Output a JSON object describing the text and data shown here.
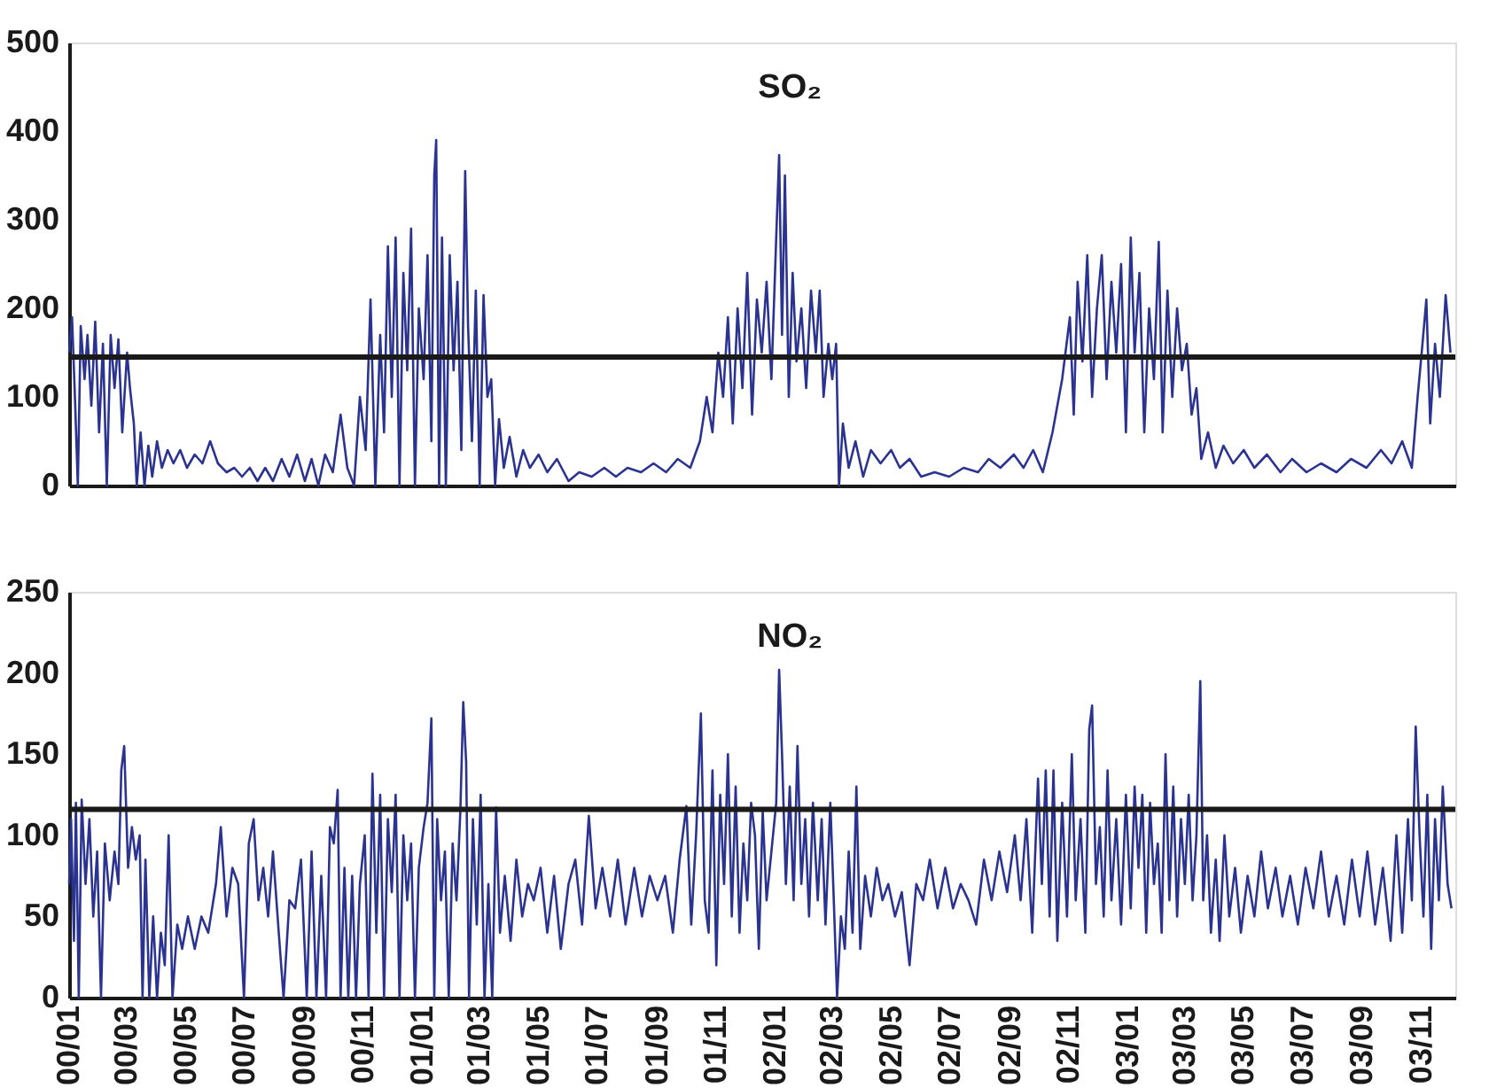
{
  "chart_data": [
    {
      "type": "line",
      "title": "SO₂",
      "xlim": [
        "2000-01-01",
        "2003-12-06"
      ],
      "ylim": [
        0,
        500
      ],
      "yticks": [
        0,
        100,
        200,
        300,
        400,
        500
      ],
      "tick_labels": "y",
      "grid": false,
      "ref_lines": [
        {
          "axis": "y",
          "value": 145,
          "color": "#1a1a1a"
        }
      ],
      "series": [
        {
          "color": "#2b3390",
          "x": [
            "2000-01-01",
            "2000-01-04",
            "2000-01-07",
            "2000-01-10",
            "2000-01-13",
            "2000-01-17",
            "2000-01-20",
            "2000-01-24",
            "2000-01-28",
            "2000-02-01",
            "2000-02-05",
            "2000-02-09",
            "2000-02-13",
            "2000-02-17",
            "2000-02-21",
            "2000-02-25",
            "2000-03-01",
            "2000-03-04",
            "2000-03-08",
            "2000-03-11",
            "2000-03-15",
            "2000-03-19",
            "2000-03-23",
            "2000-03-27",
            "2000-04-01",
            "2000-04-06",
            "2000-04-12",
            "2000-04-18",
            "2000-04-25",
            "2000-05-02",
            "2000-05-10",
            "2000-05-18",
            "2000-05-26",
            "2000-06-03",
            "2000-06-12",
            "2000-06-20",
            "2000-06-28",
            "2000-07-06",
            "2000-07-14",
            "2000-07-22",
            "2000-07-30",
            "2000-08-08",
            "2000-08-16",
            "2000-08-24",
            "2000-09-01",
            "2000-09-08",
            "2000-09-15",
            "2000-09-22",
            "2000-09-30",
            "2000-10-08",
            "2000-10-15",
            "2000-10-22",
            "2000-10-28",
            "2000-11-03",
            "2000-11-08",
            "2000-11-13",
            "2000-11-18",
            "2000-11-22",
            "2000-11-26",
            "2000-11-30",
            "2000-12-04",
            "2000-12-08",
            "2000-12-12",
            "2000-12-16",
            "2000-12-20",
            "2000-12-24",
            "2000-12-28",
            "2001-01-02",
            "2001-01-06",
            "2001-01-10",
            "2001-01-13",
            "2001-01-15",
            "2001-01-18",
            "2001-01-21",
            "2001-01-25",
            "2001-01-29",
            "2001-02-02",
            "2001-02-06",
            "2001-02-10",
            "2001-02-14",
            "2001-02-17",
            "2001-02-21",
            "2001-02-25",
            "2001-03-01",
            "2001-03-05",
            "2001-03-09",
            "2001-03-13",
            "2001-03-17",
            "2001-03-21",
            "2001-03-26",
            "2001-04-01",
            "2001-04-08",
            "2001-04-15",
            "2001-04-22",
            "2001-05-01",
            "2001-05-10",
            "2001-05-20",
            "2001-06-01",
            "2001-06-12",
            "2001-06-25",
            "2001-07-08",
            "2001-07-20",
            "2001-08-01",
            "2001-08-15",
            "2001-08-28",
            "2001-09-10",
            "2001-09-22",
            "2001-10-05",
            "2001-10-15",
            "2001-10-22",
            "2001-10-28",
            "2001-11-03",
            "2001-11-08",
            "2001-11-13",
            "2001-11-18",
            "2001-11-23",
            "2001-11-28",
            "2001-12-03",
            "2001-12-08",
            "2001-12-13",
            "2001-12-18",
            "2001-12-23",
            "2001-12-28",
            "2002-01-02",
            "2002-01-05",
            "2002-01-08",
            "2002-01-11",
            "2002-01-15",
            "2002-01-19",
            "2002-01-23",
            "2002-01-28",
            "2002-02-02",
            "2002-02-07",
            "2002-02-12",
            "2002-02-16",
            "2002-02-20",
            "2002-02-25",
            "2002-03-01",
            "2002-03-05",
            "2002-03-08",
            "2002-03-12",
            "2002-03-18",
            "2002-03-25",
            "2002-04-02",
            "2002-04-10",
            "2002-04-20",
            "2002-05-01",
            "2002-05-10",
            "2002-05-20",
            "2002-06-01",
            "2002-06-15",
            "2002-06-30",
            "2002-07-15",
            "2002-07-30",
            "2002-08-10",
            "2002-08-22",
            "2002-09-05",
            "2002-09-15",
            "2002-09-25",
            "2002-10-05",
            "2002-10-15",
            "2002-10-25",
            "2002-11-02",
            "2002-11-06",
            "2002-11-10",
            "2002-11-15",
            "2002-11-20",
            "2002-11-25",
            "2002-11-30",
            "2002-12-05",
            "2002-12-10",
            "2002-12-15",
            "2002-12-20",
            "2002-12-25",
            "2002-12-30",
            "2003-01-04",
            "2003-01-08",
            "2003-01-13",
            "2003-01-18",
            "2003-01-23",
            "2003-01-28",
            "2003-02-02",
            "2003-02-06",
            "2003-02-11",
            "2003-02-16",
            "2003-02-21",
            "2003-02-26",
            "2003-03-03",
            "2003-03-08",
            "2003-03-13",
            "2003-03-18",
            "2003-03-25",
            "2003-04-02",
            "2003-04-10",
            "2003-04-20",
            "2003-05-01",
            "2003-05-12",
            "2003-05-25",
            "2003-06-08",
            "2003-06-20",
            "2003-07-05",
            "2003-07-20",
            "2003-08-05",
            "2003-08-20",
            "2003-09-05",
            "2003-09-20",
            "2003-10-01",
            "2003-10-12",
            "2003-10-22",
            "2003-10-28",
            "2003-11-02",
            "2003-11-06",
            "2003-11-10",
            "2003-11-15",
            "2003-11-20",
            "2003-11-26",
            "2003-12-01"
          ],
          "values": [
            150,
            190,
            100,
            0,
            180,
            120,
            170,
            90,
            185,
            60,
            160,
            0,
            170,
            110,
            165,
            60,
            150,
            110,
            70,
            0,
            60,
            0,
            45,
            10,
            50,
            20,
            40,
            25,
            40,
            20,
            35,
            25,
            50,
            25,
            15,
            20,
            10,
            20,
            5,
            20,
            5,
            30,
            10,
            35,
            5,
            30,
            0,
            35,
            15,
            80,
            20,
            0,
            100,
            40,
            210,
            0,
            170,
            60,
            270,
            100,
            280,
            0,
            240,
            130,
            290,
            0,
            200,
            120,
            260,
            50,
            350,
            390,
            0,
            280,
            0,
            260,
            130,
            230,
            40,
            355,
            180,
            50,
            220,
            0,
            215,
            100,
            120,
            0,
            75,
            20,
            55,
            10,
            40,
            20,
            35,
            15,
            30,
            5,
            15,
            10,
            20,
            10,
            20,
            15,
            25,
            15,
            30,
            20,
            50,
            100,
            60,
            150,
            100,
            190,
            70,
            200,
            110,
            240,
            80,
            210,
            150,
            230,
            120,
            280,
            373,
            170,
            350,
            100,
            240,
            140,
            200,
            110,
            220,
            150,
            220,
            100,
            160,
            120,
            160,
            0,
            70,
            20,
            50,
            10,
            40,
            25,
            40,
            20,
            30,
            10,
            15,
            10,
            20,
            15,
            30,
            20,
            35,
            20,
            40,
            15,
            60,
            120,
            190,
            80,
            230,
            140,
            260,
            100,
            200,
            260,
            120,
            230,
            150,
            250,
            60,
            280,
            150,
            240,
            60,
            200,
            120,
            275,
            60,
            220,
            100,
            200,
            130,
            160,
            80,
            110,
            30,
            60,
            20,
            45,
            25,
            40,
            20,
            35,
            15,
            30,
            15,
            25,
            15,
            30,
            20,
            40,
            25,
            50,
            20,
            100,
            160,
            210,
            70,
            160,
            100,
            215,
            150
          ]
        }
      ]
    },
    {
      "type": "line",
      "title": "NO₂",
      "xlim": [
        "2000-01-01",
        "2003-12-06"
      ],
      "ylim": [
        0,
        250
      ],
      "yticks": [
        0,
        50,
        100,
        150,
        200,
        250
      ],
      "grid": false,
      "xticks": [
        {
          "value": "2000-01-01",
          "label": "00/01"
        },
        {
          "value": "2000-03-01",
          "label": "00/03"
        },
        {
          "value": "2000-05-01",
          "label": "00/05"
        },
        {
          "value": "2000-07-01",
          "label": "00/07"
        },
        {
          "value": "2000-09-01",
          "label": "00/09"
        },
        {
          "value": "2000-11-01",
          "label": "00/11"
        },
        {
          "value": "2001-01-01",
          "label": "01/01"
        },
        {
          "value": "2001-03-01",
          "label": "01/03"
        },
        {
          "value": "2001-05-01",
          "label": "01/05"
        },
        {
          "value": "2001-07-01",
          "label": "01/07"
        },
        {
          "value": "2001-09-01",
          "label": "01/09"
        },
        {
          "value": "2001-11-01",
          "label": "01/11"
        },
        {
          "value": "2002-01-01",
          "label": "02/01"
        },
        {
          "value": "2002-03-01",
          "label": "02/03"
        },
        {
          "value": "2002-05-01",
          "label": "02/05"
        },
        {
          "value": "2002-07-01",
          "label": "02/07"
        },
        {
          "value": "2002-09-01",
          "label": "02/09"
        },
        {
          "value": "2002-11-01",
          "label": "02/11"
        },
        {
          "value": "2003-01-01",
          "label": "03/01"
        },
        {
          "value": "2003-03-01",
          "label": "03/03"
        },
        {
          "value": "2003-05-01",
          "label": "03/05"
        },
        {
          "value": "2003-07-01",
          "label": "03/07"
        },
        {
          "value": "2003-09-01",
          "label": "03/09"
        },
        {
          "value": "2003-11-01",
          "label": "03/11"
        }
      ],
      "ref_lines": [
        {
          "axis": "y",
          "value": 116,
          "color": "#1a1a1a"
        }
      ],
      "series": [
        {
          "color": "#2b3390",
          "x": [
            "2000-01-01",
            "2000-01-03",
            "2000-01-06",
            "2000-01-08",
            "2000-01-11",
            "2000-01-14",
            "2000-01-18",
            "2000-01-22",
            "2000-01-26",
            "2000-01-30",
            "2000-02-03",
            "2000-02-07",
            "2000-02-12",
            "2000-02-17",
            "2000-02-21",
            "2000-02-24",
            "2000-02-27",
            "2000-03-02",
            "2000-03-06",
            "2000-03-10",
            "2000-03-14",
            "2000-03-17",
            "2000-03-20",
            "2000-03-24",
            "2000-03-28",
            "2000-04-01",
            "2000-04-05",
            "2000-04-09",
            "2000-04-13",
            "2000-04-17",
            "2000-04-22",
            "2000-04-27",
            "2000-05-03",
            "2000-05-10",
            "2000-05-17",
            "2000-05-24",
            "2000-06-01",
            "2000-06-06",
            "2000-06-12",
            "2000-06-18",
            "2000-06-24",
            "2000-06-30",
            "2000-07-05",
            "2000-07-10",
            "2000-07-15",
            "2000-07-20",
            "2000-07-25",
            "2000-07-30",
            "2000-08-05",
            "2000-08-10",
            "2000-08-16",
            "2000-08-22",
            "2000-08-28",
            "2000-09-03",
            "2000-09-08",
            "2000-09-13",
            "2000-09-18",
            "2000-09-23",
            "2000-09-27",
            "2000-10-01",
            "2000-10-05",
            "2000-10-08",
            "2000-10-12",
            "2000-10-16",
            "2000-10-20",
            "2000-10-24",
            "2000-10-28",
            "2000-11-02",
            "2000-11-06",
            "2000-11-10",
            "2000-11-14",
            "2000-11-18",
            "2000-11-22",
            "2000-11-26",
            "2000-11-30",
            "2000-12-04",
            "2000-12-08",
            "2000-12-12",
            "2000-12-16",
            "2000-12-20",
            "2000-12-24",
            "2000-12-28",
            "2001-01-02",
            "2001-01-06",
            "2001-01-10",
            "2001-01-13",
            "2001-01-16",
            "2001-01-20",
            "2001-01-24",
            "2001-01-28",
            "2001-02-01",
            "2001-02-05",
            "2001-02-09",
            "2001-02-12",
            "2001-02-15",
            "2001-02-18",
            "2001-02-22",
            "2001-02-26",
            "2001-03-02",
            "2001-03-06",
            "2001-03-10",
            "2001-03-14",
            "2001-03-18",
            "2001-03-22",
            "2001-03-27",
            "2001-04-02",
            "2001-04-08",
            "2001-04-14",
            "2001-04-20",
            "2001-04-26",
            "2001-05-03",
            "2001-05-10",
            "2001-05-17",
            "2001-05-24",
            "2001-06-01",
            "2001-06-08",
            "2001-06-15",
            "2001-06-22",
            "2001-06-29",
            "2001-07-06",
            "2001-07-14",
            "2001-07-22",
            "2001-07-30",
            "2001-08-08",
            "2001-08-16",
            "2001-08-24",
            "2001-09-01",
            "2001-09-09",
            "2001-09-17",
            "2001-09-24",
            "2001-10-01",
            "2001-10-06",
            "2001-10-11",
            "2001-10-16",
            "2001-10-20",
            "2001-10-24",
            "2001-10-28",
            "2001-11-01",
            "2001-11-05",
            "2001-11-09",
            "2001-11-13",
            "2001-11-17",
            "2001-11-21",
            "2001-11-25",
            "2001-11-29",
            "2001-12-03",
            "2001-12-07",
            "2001-12-11",
            "2001-12-15",
            "2001-12-19",
            "2001-12-23",
            "2001-12-28",
            "2002-01-02",
            "2002-01-05",
            "2002-01-08",
            "2002-01-12",
            "2002-01-16",
            "2002-01-20",
            "2002-01-24",
            "2002-01-28",
            "2002-02-01",
            "2002-02-05",
            "2002-02-09",
            "2002-02-14",
            "2002-02-18",
            "2002-02-22",
            "2002-02-27",
            "2002-03-02",
            "2002-03-06",
            "2002-03-10",
            "2002-03-14",
            "2002-03-18",
            "2002-03-22",
            "2002-03-26",
            "2002-03-30",
            "2002-04-04",
            "2002-04-10",
            "2002-04-16",
            "2002-04-22",
            "2002-04-28",
            "2002-05-05",
            "2002-05-12",
            "2002-05-20",
            "2002-05-27",
            "2002-06-03",
            "2002-06-10",
            "2002-06-18",
            "2002-06-26",
            "2002-07-04",
            "2002-07-12",
            "2002-07-20",
            "2002-07-28",
            "2002-08-05",
            "2002-08-13",
            "2002-08-21",
            "2002-08-29",
            "2002-09-06",
            "2002-09-12",
            "2002-09-18",
            "2002-09-24",
            "2002-09-30",
            "2002-10-04",
            "2002-10-08",
            "2002-10-12",
            "2002-10-16",
            "2002-10-20",
            "2002-10-25",
            "2002-10-30",
            "2002-11-04",
            "2002-11-08",
            "2002-11-13",
            "2002-11-18",
            "2002-11-22",
            "2002-11-25",
            "2002-11-29",
            "2002-12-03",
            "2002-12-07",
            "2002-12-11",
            "2002-12-15",
            "2002-12-20",
            "2002-12-25",
            "2002-12-30",
            "2003-01-04",
            "2003-01-08",
            "2003-01-12",
            "2003-01-16",
            "2003-01-20",
            "2003-01-24",
            "2003-01-28",
            "2003-02-01",
            "2003-02-05",
            "2003-02-09",
            "2003-02-13",
            "2003-02-17",
            "2003-02-21",
            "2003-02-25",
            "2003-03-01",
            "2003-03-05",
            "2003-03-09",
            "2003-03-13",
            "2003-03-17",
            "2003-03-20",
            "2003-03-24",
            "2003-03-28",
            "2003-04-02",
            "2003-04-06",
            "2003-04-11",
            "2003-04-16",
            "2003-04-22",
            "2003-04-28",
            "2003-05-05",
            "2003-05-12",
            "2003-05-19",
            "2003-05-26",
            "2003-06-03",
            "2003-06-10",
            "2003-06-18",
            "2003-06-26",
            "2003-07-04",
            "2003-07-12",
            "2003-07-20",
            "2003-07-28",
            "2003-08-05",
            "2003-08-13",
            "2003-08-21",
            "2003-08-29",
            "2003-09-06",
            "2003-09-14",
            "2003-09-22",
            "2003-09-30",
            "2003-10-06",
            "2003-10-12",
            "2003-10-18",
            "2003-10-22",
            "2003-10-26",
            "2003-10-30",
            "2003-11-03",
            "2003-11-07",
            "2003-11-11",
            "2003-11-15",
            "2003-11-19",
            "2003-11-23",
            "2003-11-28",
            "2003-12-02"
          ],
          "values": [
            70,
            110,
            35,
            120,
            0,
            122,
            70,
            110,
            50,
            90,
            0,
            95,
            60,
            90,
            70,
            140,
            155,
            80,
            105,
            85,
            100,
            0,
            85,
            0,
            50,
            0,
            40,
            20,
            100,
            0,
            45,
            30,
            50,
            30,
            50,
            40,
            70,
            105,
            50,
            80,
            70,
            0,
            95,
            110,
            60,
            80,
            50,
            90,
            40,
            0,
            60,
            55,
            85,
            0,
            90,
            0,
            75,
            0,
            105,
            95,
            128,
            0,
            80,
            0,
            75,
            0,
            70,
            100,
            0,
            138,
            40,
            125,
            0,
            110,
            65,
            125,
            0,
            100,
            60,
            95,
            0,
            80,
            105,
            120,
            172,
            0,
            110,
            60,
            90,
            0,
            95,
            60,
            115,
            182,
            145,
            0,
            110,
            45,
            125,
            0,
            70,
            0,
            117,
            40,
            75,
            35,
            85,
            50,
            70,
            60,
            80,
            40,
            75,
            30,
            70,
            85,
            45,
            112,
            55,
            80,
            50,
            85,
            45,
            80,
            50,
            75,
            60,
            75,
            40,
            85,
            118,
            45,
            100,
            175,
            60,
            40,
            140,
            20,
            125,
            70,
            150,
            50,
            130,
            40,
            95,
            60,
            120,
            100,
            30,
            115,
            60,
            90,
            120,
            202,
            150,
            70,
            130,
            60,
            155,
            70,
            110,
            50,
            120,
            60,
            110,
            45,
            120,
            70,
            0,
            50,
            30,
            90,
            40,
            130,
            30,
            75,
            50,
            80,
            60,
            70,
            50,
            65,
            20,
            70,
            60,
            85,
            55,
            80,
            55,
            70,
            60,
            45,
            85,
            60,
            90,
            65,
            100,
            60,
            110,
            40,
            135,
            70,
            140,
            50,
            140,
            35,
            120,
            50,
            150,
            60,
            110,
            40,
            165,
            180,
            70,
            105,
            50,
            140,
            60,
            110,
            45,
            125,
            55,
            130,
            80,
            125,
            40,
            120,
            70,
            95,
            40,
            150,
            60,
            130,
            50,
            110,
            70,
            125,
            60,
            100,
            195,
            60,
            100,
            40,
            85,
            35,
            100,
            50,
            80,
            40,
            75,
            50,
            90,
            55,
            80,
            50,
            75,
            45,
            80,
            55,
            90,
            50,
            75,
            45,
            85,
            50,
            90,
            45,
            80,
            35,
            100,
            40,
            110,
            60,
            167,
            100,
            50,
            125,
            30,
            110,
            60,
            130,
            70,
            55
          ]
        }
      ]
    }
  ]
}
